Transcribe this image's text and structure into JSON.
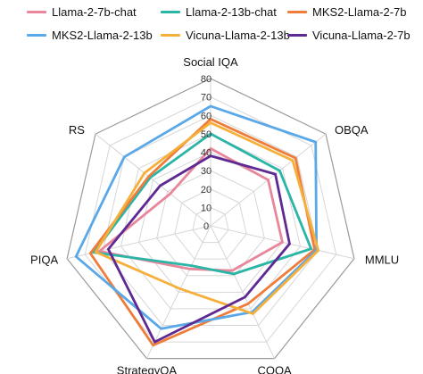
{
  "chart_data": {
    "type": "radar",
    "axes": [
      "Social IQA",
      "OBQA",
      "MMLU",
      "COQA",
      "StrategyQA",
      "PIQA",
      "RS"
    ],
    "ticks": [
      0,
      10,
      20,
      30,
      40,
      50,
      60,
      70,
      80
    ],
    "rmax": 80,
    "grid": true,
    "legend_position": "top",
    "series": [
      {
        "name": "Llama-2-7b-chat",
        "color": "#e8879b",
        "values": [
          42,
          40,
          40,
          27,
          26,
          62,
          28
        ]
      },
      {
        "name": "Llama-2-13b-chat",
        "color": "#2bb5a6",
        "values": [
          50,
          48,
          56,
          29,
          24,
          65,
          42
        ]
      },
      {
        "name": "MKS2-Llama-2-7b",
        "color": "#ee7d3a",
        "values": [
          58,
          59,
          58,
          47,
          72,
          67,
          43
        ]
      },
      {
        "name": "MKS2-Llama-2-13b",
        "color": "#5aa8e8",
        "values": [
          65,
          73,
          59,
          52,
          62,
          75,
          60
        ]
      },
      {
        "name": "Vicuna-Llama-2-13b",
        "color": "#f5b03c",
        "values": [
          56,
          57,
          60,
          53,
          38,
          64,
          46
        ]
      },
      {
        "name": "Vicuna-Llama-2-7b",
        "color": "#5e2a92",
        "values": [
          38,
          45,
          44,
          43,
          70,
          57,
          35
        ]
      }
    ]
  }
}
